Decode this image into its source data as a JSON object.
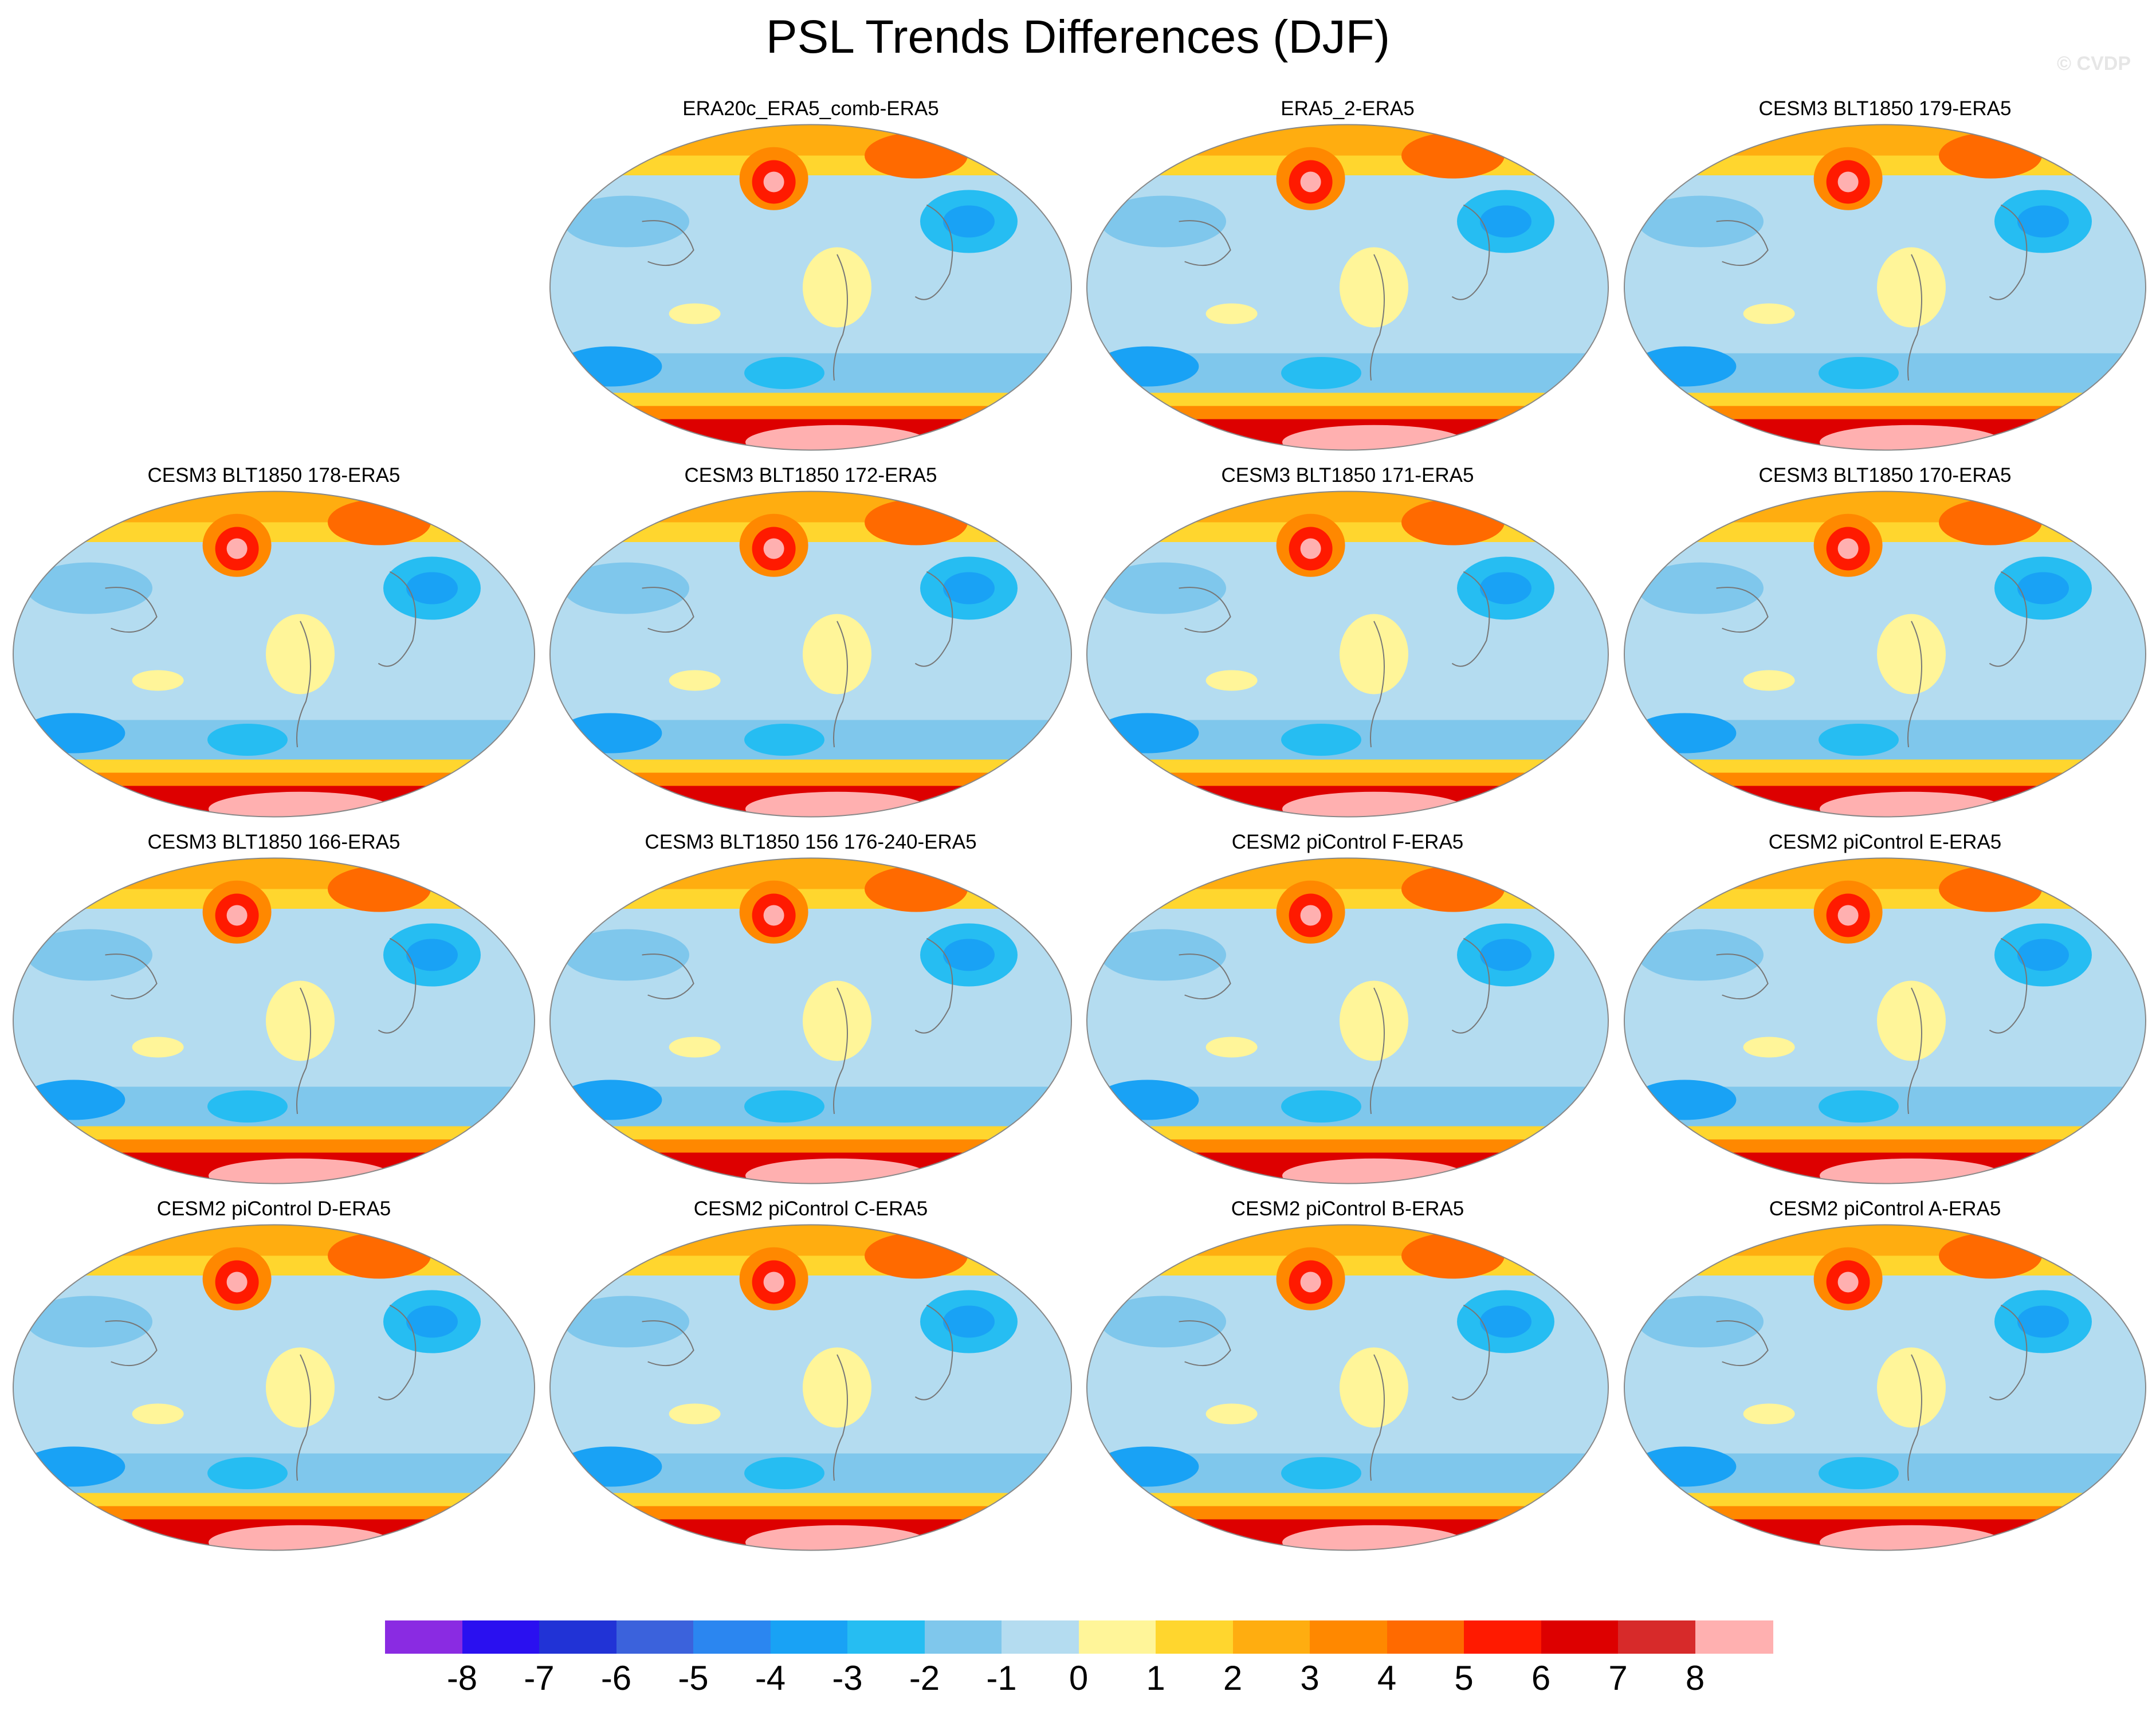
{
  "title": "PSL Trends Differences (DJF)",
  "copyright": "© CVDP",
  "panels": [
    {
      "title": "ERA20c_ERA5_comb-ERA5"
    },
    {
      "title": "ERA5_2-ERA5"
    },
    {
      "title": "CESM3 BLT1850 179-ERA5"
    },
    {
      "title": "CESM3 BLT1850 178-ERA5"
    },
    {
      "title": "CESM3 BLT1850 172-ERA5"
    },
    {
      "title": "CESM3 BLT1850 171-ERA5"
    },
    {
      "title": "CESM3 BLT1850 170-ERA5"
    },
    {
      "title": "CESM3 BLT1850 166-ERA5"
    },
    {
      "title": "CESM3 BLT1850 156 176-240-ERA5"
    },
    {
      "title": "CESM2 piControl F-ERA5"
    },
    {
      "title": "CESM2 piControl E-ERA5"
    },
    {
      "title": "CESM2 piControl D-ERA5"
    },
    {
      "title": "CESM2 piControl C-ERA5"
    },
    {
      "title": "CESM2 piControl B-ERA5"
    },
    {
      "title": "CESM2 piControl A-ERA5"
    }
  ],
  "colorbar": {
    "colors": [
      "#8a2be2",
      "#2a10f0",
      "#2133d6",
      "#3b62dc",
      "#2b86f0",
      "#19a2f5",
      "#26bdf2",
      "#7fc7ec",
      "#b4dcf0",
      "#fff599",
      "#ffd62e",
      "#ffad10",
      "#ff8800",
      "#ff6a00",
      "#ff1a00",
      "#dd0000",
      "#d72a2a",
      "#ffb0b0"
    ],
    "labels": [
      "-8",
      "-7",
      "-6",
      "-5",
      "-4",
      "-3",
      "-2",
      "-1",
      "0",
      "1",
      "2",
      "3",
      "4",
      "5",
      "6",
      "7",
      "8"
    ]
  }
}
